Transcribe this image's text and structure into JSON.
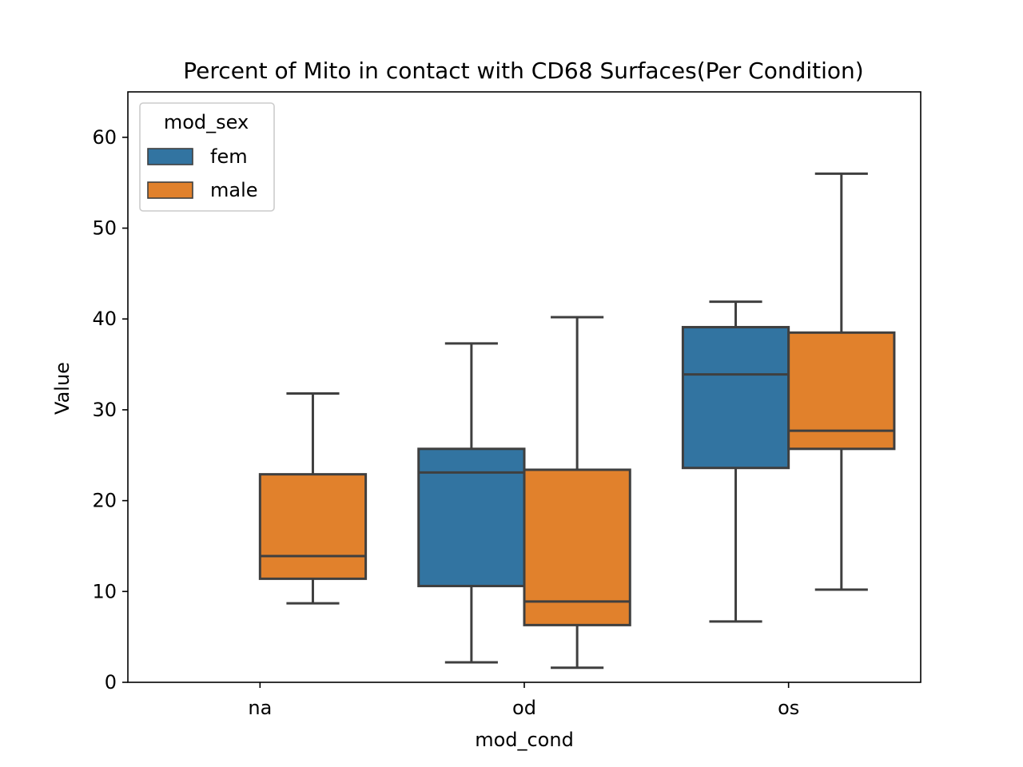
{
  "chart_data": {
    "type": "box",
    "title": "Percent of Mito in contact with CD68 Surfaces(Per Condition)",
    "xlabel": "mod_cond",
    "ylabel": "Value",
    "categories": [
      "na",
      "od",
      "os"
    ],
    "ylim": [
      0,
      65
    ],
    "yticks": [
      0,
      10,
      20,
      30,
      40,
      50,
      60
    ],
    "grid": false,
    "legend": {
      "title": "mod_sex",
      "placement": "top-left",
      "entries": [
        "fem",
        "male"
      ]
    },
    "colors": {
      "fem": "#3274a1",
      "male": "#e1812c",
      "edge": "#3f3f3f"
    },
    "series": [
      {
        "name": "fem",
        "boxes": [
          null,
          {
            "category": "od",
            "whisker_low": 2.2,
            "q1": 10.6,
            "median": 23.1,
            "q3": 25.7,
            "whisker_high": 37.3
          },
          {
            "category": "os",
            "whisker_low": 6.7,
            "q1": 23.6,
            "median": 33.9,
            "q3": 39.1,
            "whisker_high": 41.9
          }
        ]
      },
      {
        "name": "male",
        "boxes": [
          {
            "category": "na",
            "whisker_low": 8.7,
            "q1": 11.4,
            "median": 13.9,
            "q3": 22.9,
            "whisker_high": 31.8
          },
          {
            "category": "od",
            "whisker_low": 1.6,
            "q1": 6.3,
            "median": 8.9,
            "q3": 23.4,
            "whisker_high": 40.2
          },
          {
            "category": "os",
            "whisker_low": 10.2,
            "q1": 25.7,
            "median": 27.7,
            "q3": 38.5,
            "whisker_high": 56.0
          }
        ]
      }
    ]
  }
}
